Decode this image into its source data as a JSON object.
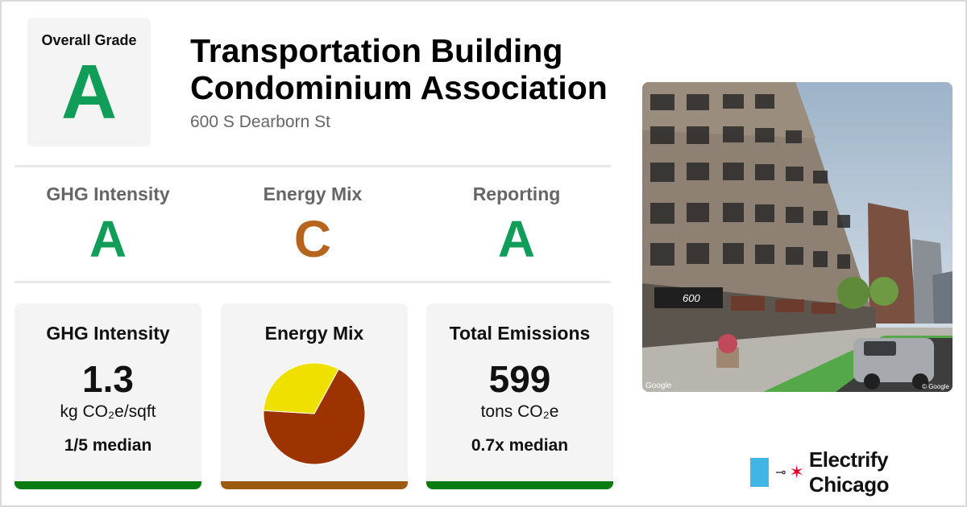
{
  "overall": {
    "label": "Overall Grade",
    "grade": "A",
    "grade_color": "#0f9d58"
  },
  "building": {
    "name": "Transportation Building Condominium Association",
    "address": "600 S Dearborn St"
  },
  "grades": [
    {
      "label": "GHG Intensity",
      "grade": "A",
      "color": "#0f9d58"
    },
    {
      "label": "Energy Mix",
      "grade": "C",
      "color": "#b5651d"
    },
    {
      "label": "Reporting",
      "grade": "A",
      "color": "#0f9d58"
    }
  ],
  "cards": {
    "ghg": {
      "title": "GHG Intensity",
      "value": "1.3",
      "unit": "kg CO₂e/sqft",
      "median": "1/5 median",
      "bar_color": "#0a7d12"
    },
    "mix": {
      "title": "Energy Mix",
      "bar_color": "#9a5b10",
      "pie": [
        {
          "value": 0.68,
          "color": "#9c3300"
        },
        {
          "value": 0.32,
          "color": "#efe000"
        }
      ]
    },
    "emissions": {
      "title": "Total Emissions",
      "value": "599",
      "unit": "tons CO₂e",
      "median": "0.7x median",
      "bar_color": "#0a7d12"
    }
  },
  "photo": {
    "sign_text": "600",
    "credit_left": "Google",
    "credit_right": "© Google"
  },
  "brand": {
    "name": "Electrify Chicago",
    "plug_icon": "plug-icon",
    "star_icon": "star-icon",
    "accent": "#41b6e6"
  }
}
